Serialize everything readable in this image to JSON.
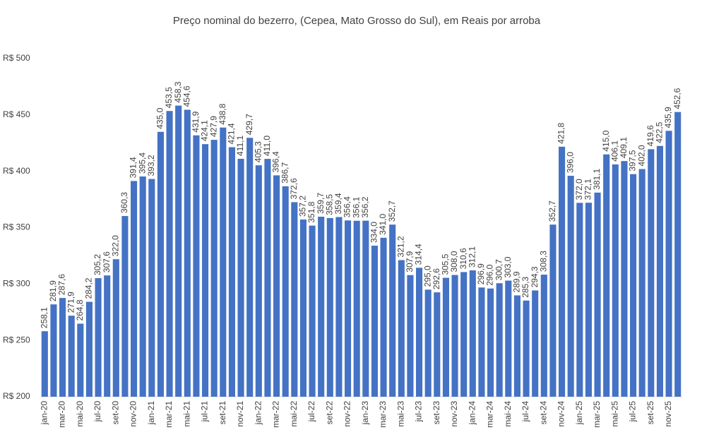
{
  "chart_data": {
    "type": "bar",
    "title": "Preço nominal do bezerro, (Cepea, Mato Grosso do Sul), em Reais por arroba",
    "categories": [
      "jan-20",
      null,
      "mar-20",
      null,
      "mai-20",
      null,
      "jul-20",
      null,
      "set-20",
      null,
      "nov-20",
      null,
      "jan-21",
      null,
      "mar-21",
      null,
      "mai-21",
      null,
      "jul-21",
      null,
      "set-21",
      null,
      "nov-21",
      null,
      "jan-22",
      null,
      "mar-22",
      null,
      "mai-22",
      null,
      "jul-22",
      null,
      "set-22",
      null,
      "nov-22",
      null,
      "jan-23",
      null,
      "mar-23",
      null,
      "mai-23",
      null,
      "jul-23",
      null,
      "set-23",
      null,
      "nov-23",
      null,
      "jan-24",
      null,
      "mar-24",
      null,
      "mai-24",
      null,
      "jul-24",
      null,
      "set-24",
      null,
      "nov-24",
      null,
      "jan-25",
      null,
      "mar-25",
      null,
      "mai-25",
      null,
      "jul-25",
      null,
      "set-25",
      null,
      "nov-25",
      null
    ],
    "values": [
      258.1,
      281.9,
      287.6,
      271.9,
      264.8,
      284.2,
      305.2,
      307.6,
      322.0,
      360.3,
      391.4,
      395.4,
      393.2,
      435.0,
      453.5,
      458.3,
      454.6,
      431.9,
      424.1,
      427.9,
      438.8,
      421.4,
      411.1,
      429.7,
      405.3,
      411.0,
      396.4,
      386.7,
      372.6,
      357.2,
      351.8,
      359.7,
      358.5,
      359.4,
      356.4,
      356.1,
      356.2,
      334.0,
      341.0,
      352.7,
      321.2,
      307.9,
      314.4,
      295.0,
      292.6,
      305.5,
      308.0,
      310.6,
      312.1,
      296.9,
      296.0,
      300.7,
      303.0,
      289.9,
      285.3,
      294.3,
      308.3,
      352.7,
      421.8,
      396.0,
      372.0,
      372.1,
      381.1,
      415.0,
      406.1,
      409.1,
      397.5,
      402.0,
      419.6,
      422.5,
      435.9,
      452.6
    ],
    "value_labels": [
      "258,1",
      "281,9",
      "287,6",
      "271,9",
      "264,8",
      "284,2",
      "305,2",
      "307,6",
      "322,0",
      "360,3",
      "391,4",
      "395,4",
      "393,2",
      "435,0",
      "453,5",
      "458,3",
      "454,6",
      "431,9",
      "424,1",
      "427,9",
      "438,8",
      "421,4",
      "411,1",
      "429,7",
      "405,3",
      "411,0",
      "396,4",
      "386,7",
      "372,6",
      "357,2",
      "351,8",
      "359,7",
      "358,5",
      "359,4",
      "356,4",
      "356,1",
      "356,2",
      "334,0",
      "341,0",
      "352,7",
      "321,2",
      "307,9",
      "314,4",
      "295,0",
      "292,6",
      "305,5",
      "308,0",
      "310,6",
      "312,1",
      "296,9",
      "296,0",
      "300,7",
      "303,0",
      "289,9",
      "285,3",
      "294,3",
      "308,3",
      "352,7",
      "421,8",
      "396,0",
      "372,0",
      "372,1",
      "381,1",
      "415,0",
      "406,1",
      "409,1",
      "397,5",
      "402,0",
      "419,6",
      "422,5",
      "435,9",
      "452,6"
    ],
    "color": "#4472c4",
    "ylim": [
      200,
      500
    ],
    "yticks": [
      {
        "value": 200,
        "label": "R$ 200"
      },
      {
        "value": 250,
        "label": "R$ 250"
      },
      {
        "value": 300,
        "label": "R$ 300"
      },
      {
        "value": 350,
        "label": "R$ 350"
      },
      {
        "value": 400,
        "label": "R$ 400"
      },
      {
        "value": 450,
        "label": "R$ 450"
      },
      {
        "value": 500,
        "label": "R$ 500"
      }
    ],
    "grid": false
  }
}
